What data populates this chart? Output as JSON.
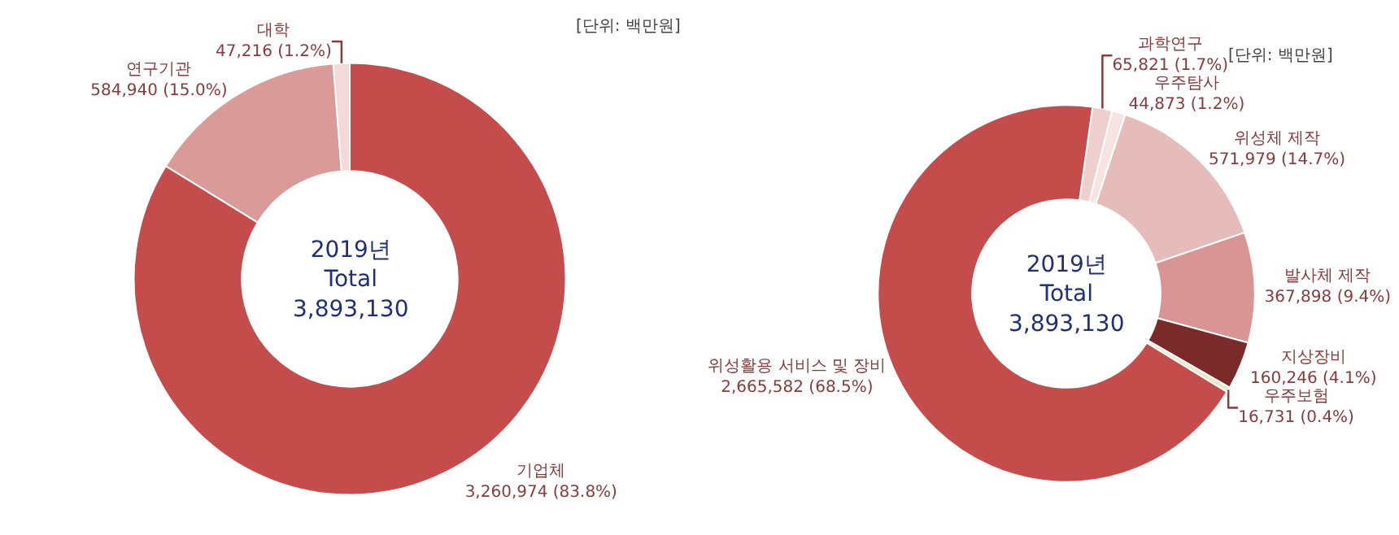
{
  "chart_data": [
    {
      "type": "donut",
      "categories": [
        "기업체",
        "연구기관",
        "대학"
      ],
      "values": [
        3260974,
        584940,
        47216
      ],
      "value_labels": [
        "3,260,974 (83.8%)",
        "584,940 (15.0%)",
        "47,216 (1.2%)"
      ],
      "colors": [
        "#c44d4b",
        "#d99a98",
        "#f2dad8"
      ],
      "annotations": [
        "[단위: 백만원]",
        "2019년\nTotal\n3,893,130"
      ]
    },
    {
      "type": "donut",
      "categories": [
        "과학연구",
        "우주탐사",
        "위성체 제작",
        "발사체 제작",
        "지상장비",
        "우주보험",
        "위성활용 서비스 및 장비"
      ],
      "values": [
        65821,
        44873,
        571979,
        367898,
        160246,
        16731,
        2665582
      ],
      "value_labels": [
        "65,821 (1.7%)",
        "44,873 (1.2%)",
        "571,979 (14.7%)",
        "367,898 (9.4%)",
        "160,246 (4.1%)",
        "16,731 (0.4%)",
        "2,665,582 (68.5%)"
      ],
      "colors": [
        "#efcfcd",
        "#f7e3df",
        "#e6bcbb",
        "#d99594",
        "#7b2a2a",
        "#f5e4c4",
        "#c44d4b"
      ],
      "annotations": [
        "[단위: 백만원]",
        "2019년\nTotal\n3,893,130"
      ]
    }
  ]
}
